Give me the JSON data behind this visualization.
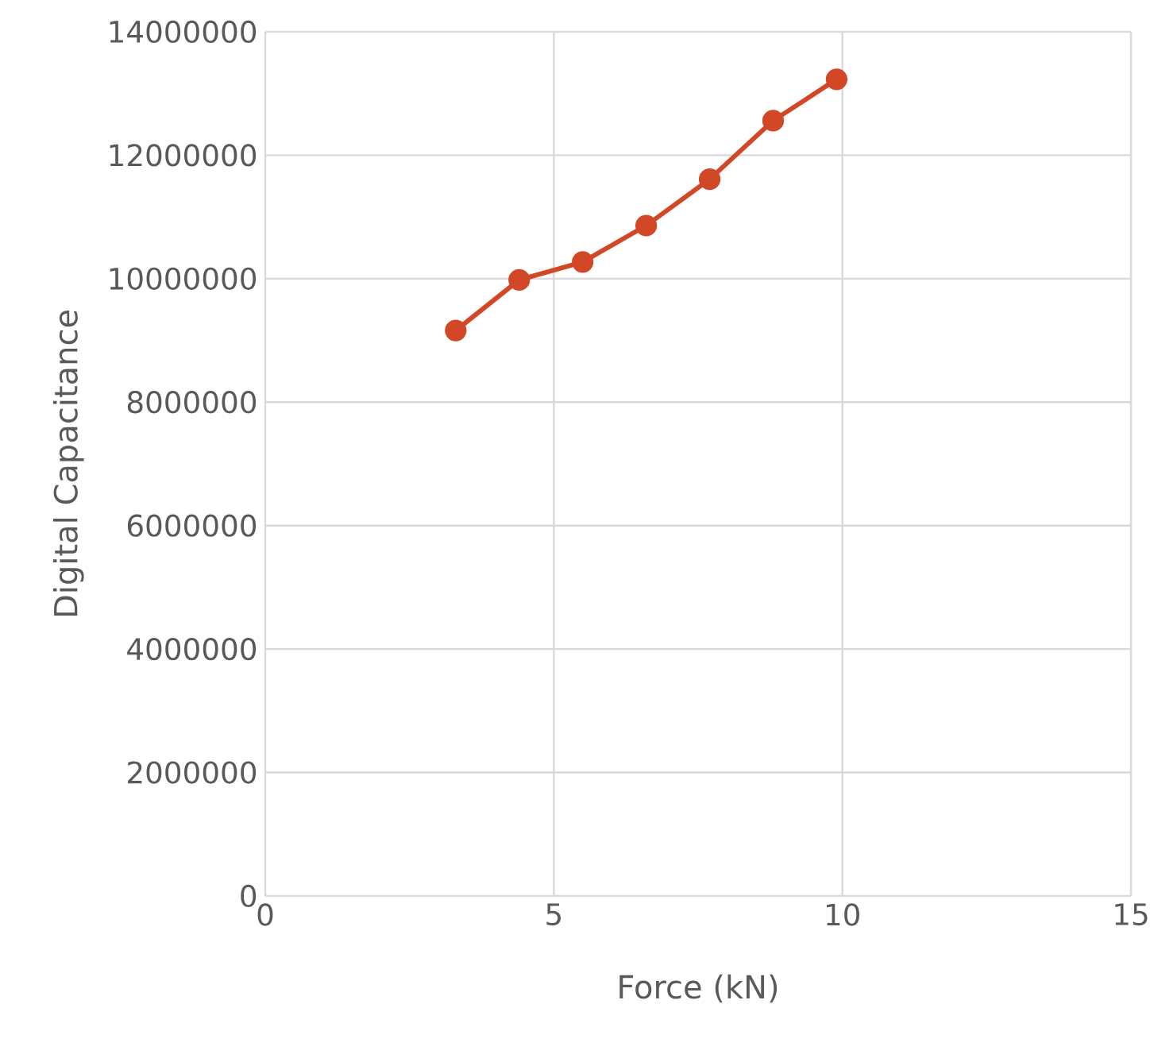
{
  "chart_data": {
    "type": "line",
    "xlabel": "Force (kN)",
    "ylabel": "Digital Capacitance",
    "x": [
      3.3,
      4.4,
      5.5,
      6.6,
      7.7,
      8.8,
      9.9
    ],
    "series": [
      {
        "color": "#d24726",
        "values": [
          9160000,
          9980000,
          10270000,
          10860000,
          11610000,
          12560000,
          13230000
        ]
      }
    ],
    "xlim": [
      0,
      15
    ],
    "xticks": [
      0,
      5,
      10,
      15
    ],
    "ylim": [
      0,
      14000000
    ],
    "yticks": [
      0,
      2000000,
      4000000,
      6000000,
      8000000,
      10000000,
      12000000,
      14000000
    ],
    "grid": true,
    "marker": "circle",
    "line_style": "solid"
  }
}
